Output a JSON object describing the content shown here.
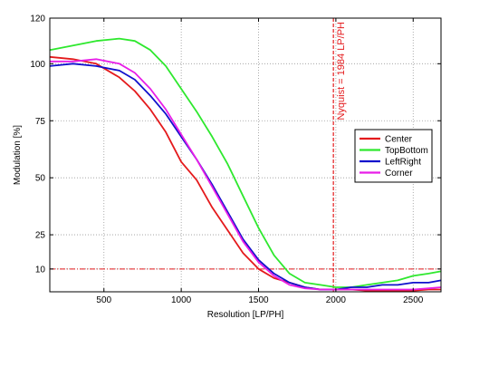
{
  "chart_data": {
    "type": "line",
    "xlabel": "Resolution [LP/PH]",
    "ylabel": "Modulation [%]",
    "xlim": [
      150,
      2680
    ],
    "ylim": [
      0,
      120
    ],
    "xticks": [
      500,
      1000,
      1500,
      2000,
      2500
    ],
    "yticks": [
      10,
      25,
      50,
      75,
      100,
      120
    ],
    "grid": true,
    "legend_position": "right",
    "nyquist": {
      "x": 1984,
      "label": "Nyquist = 1984 LP/PH"
    },
    "reference_line": {
      "y": 10
    },
    "series": [
      {
        "name": "Center",
        "color": "#e41a1c",
        "x": [
          150,
          300,
          450,
          600,
          700,
          800,
          900,
          1000,
          1100,
          1200,
          1300,
          1400,
          1500,
          1600,
          1700,
          1800,
          1900,
          2000,
          2100,
          2200,
          2300,
          2400,
          2500,
          2600,
          2680
        ],
        "y": [
          103,
          102,
          100,
          94,
          88,
          80,
          70,
          57,
          49,
          37,
          27,
          17,
          10,
          6,
          4,
          2,
          1,
          1,
          1,
          0.5,
          0.5,
          0.5,
          0.5,
          1,
          1
        ]
      },
      {
        "name": "TopBottom",
        "color": "#2ee82e",
        "x": [
          150,
          300,
          450,
          600,
          700,
          800,
          900,
          1000,
          1100,
          1200,
          1300,
          1400,
          1500,
          1600,
          1700,
          1800,
          1900,
          2000,
          2100,
          2200,
          2300,
          2400,
          2500,
          2600,
          2680
        ],
        "y": [
          106,
          108,
          110,
          111,
          110,
          106,
          99,
          89,
          79,
          68,
          56,
          42,
          28,
          16,
          8,
          4,
          3,
          2,
          2,
          3,
          4,
          5,
          7,
          8,
          9
        ]
      },
      {
        "name": "LeftRight",
        "color": "#1010cc",
        "x": [
          150,
          300,
          450,
          600,
          700,
          800,
          900,
          1000,
          1100,
          1200,
          1300,
          1400,
          1500,
          1600,
          1700,
          1800,
          1900,
          2000,
          2100,
          2200,
          2300,
          2400,
          2500,
          2600,
          2680
        ],
        "y": [
          99,
          100,
          99,
          97,
          93,
          86,
          78,
          68,
          58,
          47,
          35,
          23,
          14,
          8,
          4,
          2,
          1,
          1,
          2,
          2,
          3,
          3,
          4,
          4,
          5
        ]
      },
      {
        "name": "Corner",
        "color": "#e81ee8",
        "x": [
          150,
          300,
          450,
          600,
          700,
          800,
          900,
          1000,
          1100,
          1200,
          1300,
          1400,
          1500,
          1600,
          1700,
          1800,
          1900,
          2000,
          2100,
          2200,
          2300,
          2400,
          2500,
          2600,
          2680
        ],
        "y": [
          101,
          101,
          102,
          100,
          96,
          89,
          80,
          69,
          58,
          46,
          34,
          22,
          13,
          7,
          3,
          1.5,
          1,
          1,
          1,
          1,
          1,
          1,
          1,
          1.5,
          2
        ]
      }
    ]
  }
}
